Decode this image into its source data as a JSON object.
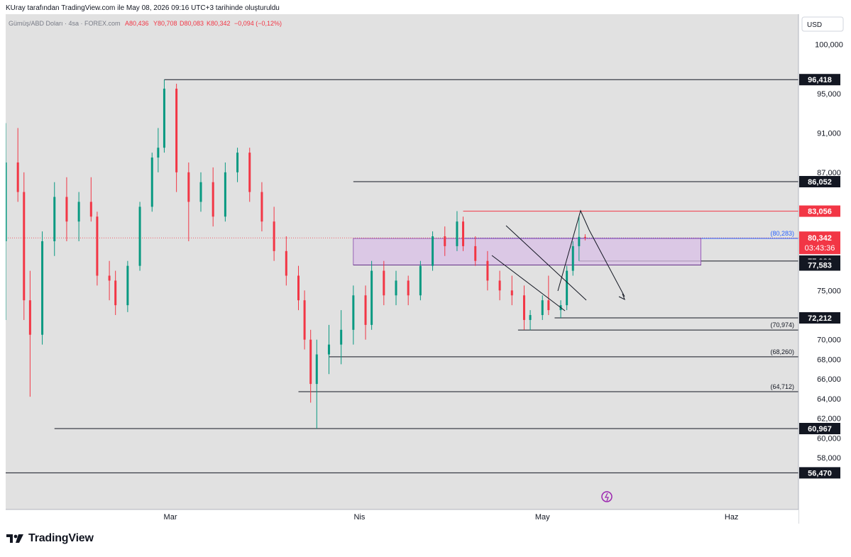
{
  "header": {
    "note": "KUray tarafından TradingView.com ile May 08, 2026 09:16 UTC+3 tarihinde oluşturuldu"
  },
  "legend": {
    "symbol": "Gümüş/ABD Doları · 4sa · FOREX.com",
    "open": "A80,436",
    "high": "Y80,708",
    "low": "D80,083",
    "close": "K80,342",
    "change": "−0,094 (−0,12%)"
  },
  "currency_label": "USD",
  "brand": "TradingView",
  "colors": {
    "background": "#e1e1e1",
    "up": "#089981",
    "down": "#f23645",
    "level_line": "#131722",
    "resistance_line": "#f23645",
    "zone_fill": "#d8bfe6",
    "zone_border": "#9575cd",
    "dotted_price": "#f23645",
    "blue_line": "#2962ff"
  },
  "chart_data": {
    "type": "candlestick",
    "y_range": [
      55200,
      102200
    ],
    "y_ticks": [
      {
        "value": 100000,
        "label": "100,000"
      },
      {
        "value": 95000,
        "label": "95,000"
      },
      {
        "value": 91000,
        "label": "91,000"
      },
      {
        "value": 87000,
        "label": "87,000"
      },
      {
        "value": 75000,
        "label": "75,000"
      },
      {
        "value": 70000,
        "label": "70,000"
      },
      {
        "value": 68000,
        "label": "68,000"
      },
      {
        "value": 66000,
        "label": "66,000"
      },
      {
        "value": 64000,
        "label": "64,000"
      },
      {
        "value": 62000,
        "label": "62,000"
      },
      {
        "value": 60000,
        "label": "60,000"
      },
      {
        "value": 58000,
        "label": "58,000"
      }
    ],
    "x_ticks": [
      {
        "label": "Mar",
        "date": "2026-03-01"
      },
      {
        "label": "Nis",
        "date": "2026-04-01"
      },
      {
        "label": "May",
        "date": "2026-05-01"
      },
      {
        "label": "Haz",
        "date": "2026-06-01"
      }
    ],
    "x_range": [
      "2026-02-02",
      "2026-06-10"
    ],
    "horizontal_levels": [
      {
        "value": 96418,
        "label": "96,418",
        "from": "2026-02-28"
      },
      {
        "value": 86052,
        "label": "86,052",
        "from": "2026-03-31"
      },
      {
        "value": 83056,
        "label": "83,056",
        "from": "2026-04-18",
        "style": "red"
      },
      {
        "value": 77986,
        "label": "77,986",
        "from": "2026-05-07"
      },
      {
        "value": 77583,
        "label": "77,583",
        "from": "2026-03-31",
        "to": "2026-05-27"
      },
      {
        "value": 72212,
        "label": "72,212",
        "from": "2026-05-03"
      },
      {
        "value": 60967,
        "label": "60,967",
        "from": "2026-02-10"
      },
      {
        "value": 56470,
        "label": "56,470",
        "from": "2026-02-02"
      }
    ],
    "annotated_levels": [
      {
        "value": 80283,
        "label": "(80,283)",
        "from": "2026-04-18",
        "style": "blue"
      },
      {
        "value": 70974,
        "label": "(70,974)",
        "from": "2026-04-27"
      },
      {
        "value": 68260,
        "label": "(68,260)",
        "from": "2026-03-27"
      },
      {
        "value": 64712,
        "label": "(64,712)",
        "from": "2026-03-22"
      }
    ],
    "zone": {
      "from": "2026-03-31",
      "to": "2026-05-27",
      "low": 77583,
      "high": 80283
    },
    "last_price": {
      "value": 80342,
      "label": "80,342",
      "countdown": "03:43:36"
    },
    "candles": [
      [
        "2026-02-02",
        80000,
        92000,
        72000,
        88000
      ],
      [
        "2026-02-04",
        88000,
        91500,
        84000,
        85000
      ],
      [
        "2026-02-05",
        85000,
        87000,
        72000,
        74000
      ],
      [
        "2026-02-06",
        74000,
        77000,
        64200,
        70500
      ],
      [
        "2026-02-08",
        70500,
        81000,
        69500,
        80000
      ],
      [
        "2026-02-10",
        80000,
        86000,
        78500,
        84500
      ],
      [
        "2026-02-12",
        84500,
        86500,
        80000,
        82000
      ],
      [
        "2026-02-14",
        82000,
        85000,
        80000,
        84000
      ],
      [
        "2026-02-16",
        84000,
        86500,
        82000,
        82500
      ],
      [
        "2026-02-17",
        82500,
        83000,
        75500,
        76500
      ],
      [
        "2026-02-19",
        76500,
        78000,
        74000,
        76000
      ],
      [
        "2026-02-20",
        76000,
        77000,
        72500,
        73500
      ],
      [
        "2026-02-22",
        73500,
        78000,
        72800,
        77500
      ],
      [
        "2026-02-24",
        77500,
        84000,
        77000,
        83500
      ],
      [
        "2026-02-26",
        83500,
        89000,
        83000,
        88500
      ],
      [
        "2026-02-27",
        88500,
        91500,
        87000,
        89500
      ],
      [
        "2026-02-28",
        89500,
        96418,
        89000,
        95500
      ],
      [
        "2026-03-02",
        95500,
        96000,
        85000,
        87000
      ],
      [
        "2026-03-04",
        87000,
        88000,
        80000,
        84000
      ],
      [
        "2026-03-06",
        84000,
        87000,
        83000,
        86000
      ],
      [
        "2026-03-08",
        86000,
        87500,
        81500,
        82500
      ],
      [
        "2026-03-10",
        82500,
        88000,
        82000,
        87000
      ],
      [
        "2026-03-12",
        87000,
        89500,
        86000,
        89000
      ],
      [
        "2026-03-14",
        89000,
        89500,
        84000,
        85000
      ],
      [
        "2026-03-16",
        85000,
        86000,
        81000,
        82000
      ],
      [
        "2026-03-18",
        82000,
        83500,
        78000,
        79000
      ],
      [
        "2026-03-20",
        79000,
        80500,
        75500,
        76500
      ],
      [
        "2026-03-22",
        76500,
        77500,
        73000,
        74000
      ],
      [
        "2026-03-23",
        74000,
        75000,
        69000,
        70000
      ],
      [
        "2026-03-24",
        70000,
        71000,
        63600,
        65500
      ],
      [
        "2026-03-25",
        65500,
        70000,
        60967,
        68500
      ],
      [
        "2026-03-27",
        68500,
        71500,
        66500,
        69500
      ],
      [
        "2026-03-29",
        69500,
        73000,
        67500,
        71000
      ],
      [
        "2026-03-31",
        71000,
        75500,
        69500,
        74500
      ],
      [
        "2026-04-02",
        74500,
        75500,
        70000,
        71500
      ],
      [
        "2026-04-03",
        71500,
        78000,
        71000,
        77000
      ],
      [
        "2026-04-05",
        77000,
        78000,
        73500,
        74500
      ],
      [
        "2026-04-07",
        74500,
        77000,
        73500,
        76000
      ],
      [
        "2026-04-09",
        76000,
        76500,
        73500,
        74500
      ],
      [
        "2026-04-11",
        74500,
        78000,
        74000,
        77500
      ],
      [
        "2026-04-13",
        77500,
        81000,
        77000,
        80500
      ],
      [
        "2026-04-15",
        80500,
        81500,
        78500,
        79500
      ],
      [
        "2026-04-17",
        79500,
        83056,
        79000,
        82000
      ],
      [
        "2026-04-18",
        82000,
        82500,
        79000,
        79500
      ],
      [
        "2026-04-20",
        79500,
        80500,
        77500,
        78000
      ],
      [
        "2026-04-22",
        78000,
        79000,
        75000,
        76000
      ],
      [
        "2026-04-24",
        76000,
        77000,
        74000,
        75000
      ],
      [
        "2026-04-26",
        75000,
        76500,
        73500,
        74500
      ],
      [
        "2026-04-28",
        74500,
        75500,
        71000,
        72000
      ],
      [
        "2026-04-29",
        72000,
        73000,
        70974,
        72500
      ],
      [
        "2026-05-01",
        72500,
        74500,
        72000,
        74000
      ],
      [
        "2026-05-02",
        74000,
        76500,
        72500,
        73000
      ],
      [
        "2026-05-04",
        73000,
        74000,
        72212,
        73500
      ],
      [
        "2026-05-05",
        73500,
        77500,
        73000,
        77000
      ],
      [
        "2026-05-06",
        77000,
        80000,
        76500,
        79500
      ],
      [
        "2026-05-07",
        79500,
        82500,
        78000,
        80436
      ],
      [
        "2026-05-08",
        80436,
        80708,
        80083,
        80342
      ]
    ]
  }
}
